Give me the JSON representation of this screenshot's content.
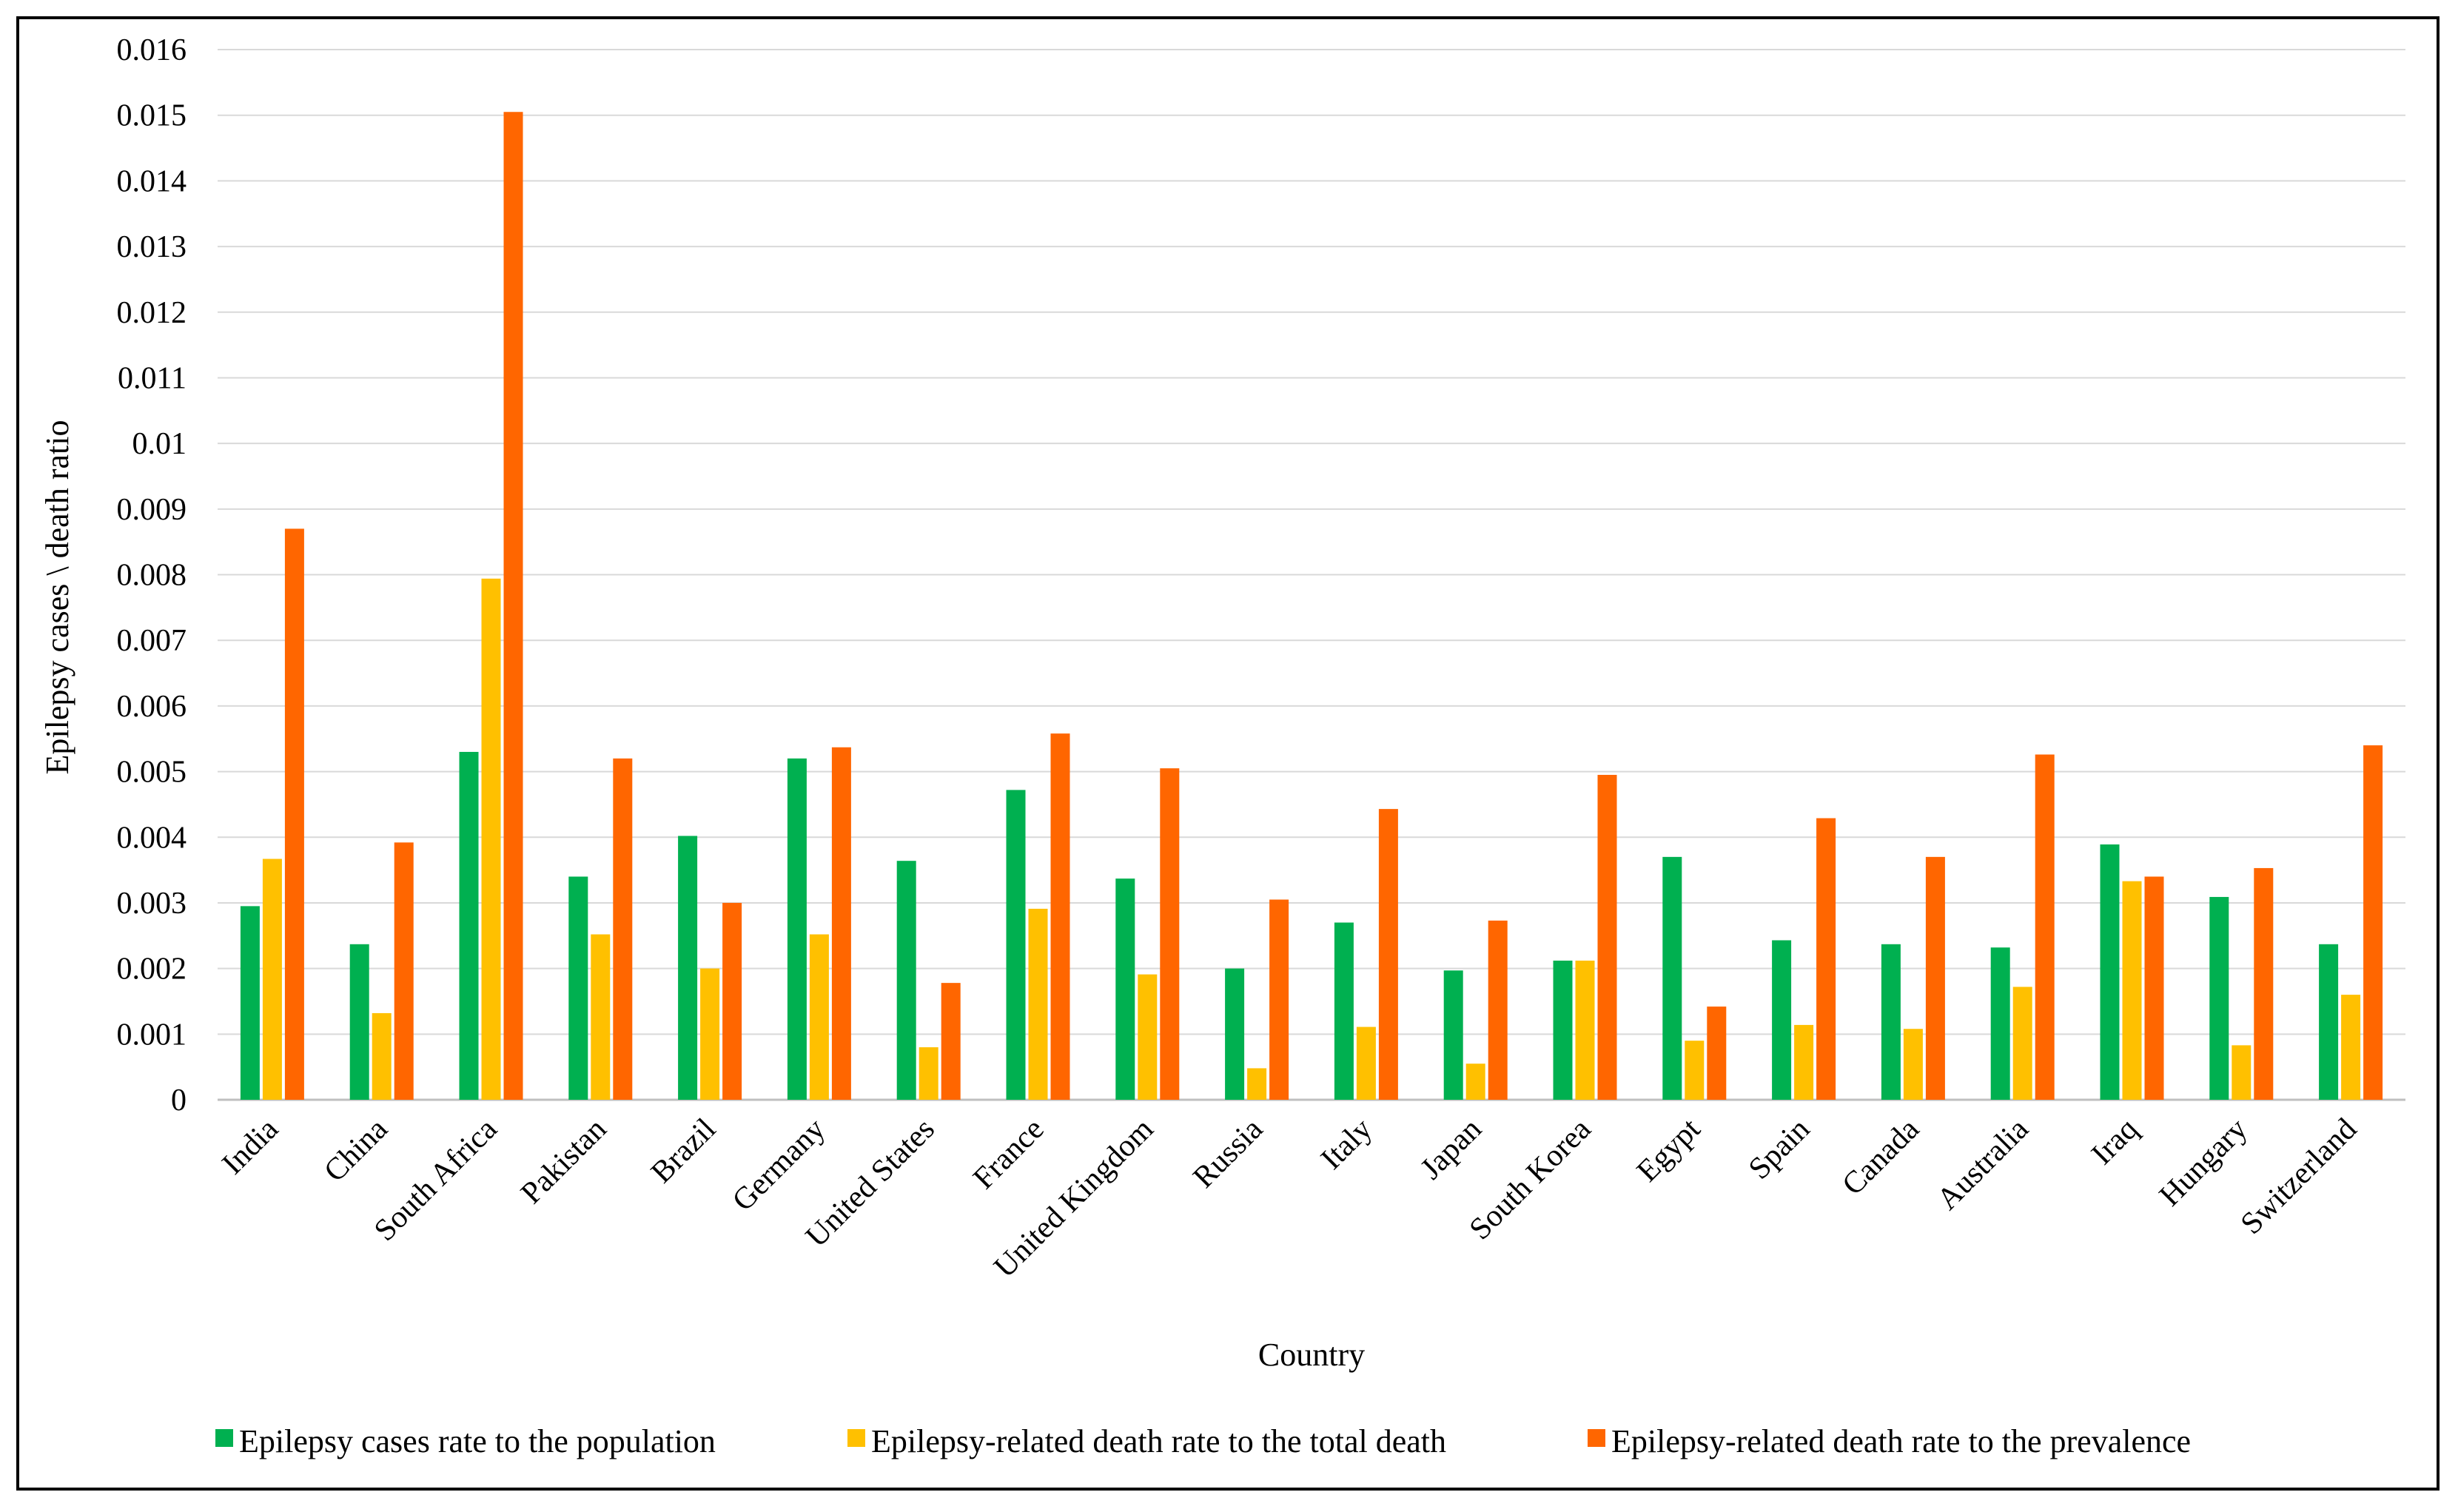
{
  "chart_data": {
    "type": "bar",
    "title": "",
    "xlabel": "Country",
    "ylabel": "Epilepsy cases \\ death ratio",
    "ylim": [
      0,
      0.016
    ],
    "yticks": [
      "0",
      "0.001",
      "0.002",
      "0.003",
      "0.004",
      "0.005",
      "0.006",
      "0.007",
      "0.008",
      "0.009",
      "0.01",
      "0.011",
      "0.012",
      "0.013",
      "0.014",
      "0.015",
      "0.016"
    ],
    "grid": true,
    "legend_position": "bottom",
    "categories": [
      "India",
      "China",
      "South Africa",
      "Pakistan",
      "Brazil",
      "Germany",
      "United States",
      "France",
      "United Kingdom",
      "Russia",
      "Italy",
      "Japan",
      "South Korea",
      "Egypt",
      "Spain",
      "Canada",
      "Australia",
      "Iraq",
      "Hungary",
      "Switzerland"
    ],
    "series": [
      {
        "name": "Epilepsy cases rate to the population",
        "color": "#00b050",
        "values": [
          0.00295,
          0.00237,
          0.0053,
          0.0034,
          0.00402,
          0.0052,
          0.00364,
          0.00472,
          0.00337,
          0.002,
          0.0027,
          0.00197,
          0.00212,
          0.0037,
          0.00243,
          0.00237,
          0.00232,
          0.00389,
          0.00309,
          0.00237
        ]
      },
      {
        "name": "Epilepsy-related death rate to the total death",
        "color": "#ffc000",
        "values": [
          0.00367,
          0.00132,
          0.00794,
          0.00252,
          0.002,
          0.00252,
          0.0008,
          0.00291,
          0.00191,
          0.00048,
          0.00111,
          0.00055,
          0.00212,
          0.0009,
          0.00114,
          0.00108,
          0.00172,
          0.00333,
          0.00083,
          0.0016
        ]
      },
      {
        "name": "Epilepsy-related death rate to the prevalence",
        "color": "#ff6600",
        "values": [
          0.0087,
          0.00392,
          0.01505,
          0.0052,
          0.003,
          0.00537,
          0.00178,
          0.00558,
          0.00505,
          0.00305,
          0.00443,
          0.00273,
          0.00495,
          0.00142,
          0.00429,
          0.0037,
          0.00526,
          0.0034,
          0.00353,
          0.0054
        ]
      }
    ]
  }
}
